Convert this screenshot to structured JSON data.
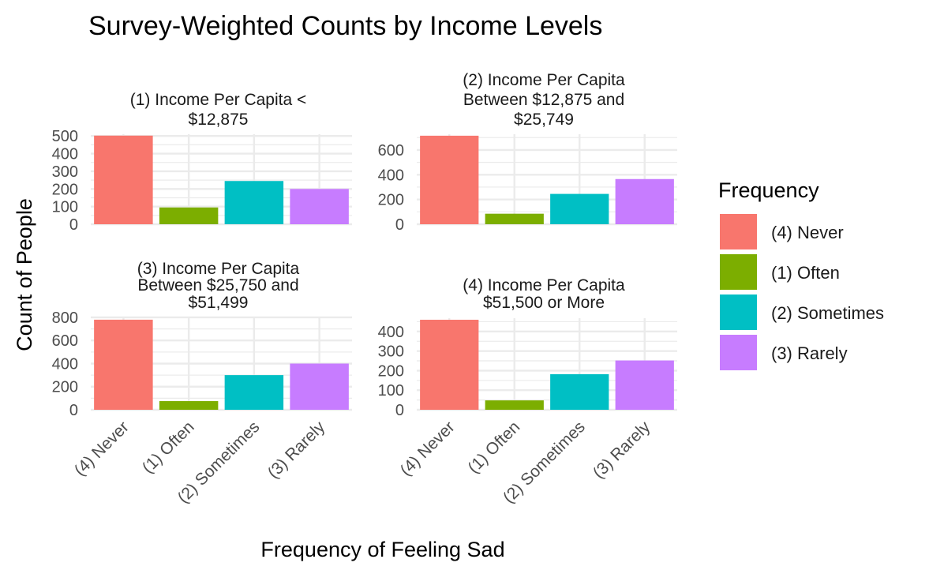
{
  "chart_data": {
    "type": "bar",
    "title": "Survey-Weighted Counts by Income Levels",
    "xlabel": "Frequency of Feeling Sad",
    "ylabel": "Count of People",
    "categories": [
      "(4) Never",
      "(1) Often",
      "(2) Sometimes",
      "(3) Rarely"
    ],
    "colors": [
      "#F8766D",
      "#7CAE00",
      "#00BFC4",
      "#C77CFF"
    ],
    "legend": {
      "title": "Frequency",
      "placement": "right",
      "items": [
        "(4) Never",
        "(1) Often",
        "(2) Sometimes",
        "(3) Rarely"
      ]
    },
    "grid": true,
    "panels": [
      {
        "title_lines": [
          "(1) Income Per Capita <",
          "$12,875"
        ],
        "values": [
          502,
          95,
          245,
          200
        ],
        "ylim": [
          0,
          510
        ],
        "ticks": [
          0,
          100,
          200,
          300,
          400,
          500
        ]
      },
      {
        "title_lines": [
          "(2) Income Per Capita",
          "Between $12,875 and",
          "$25,749"
        ],
        "values": [
          715,
          85,
          245,
          365
        ],
        "ylim": [
          0,
          727
        ],
        "ticks": [
          0,
          200,
          400,
          600
        ]
      },
      {
        "title_lines": [
          "(3) Income Per Capita",
          "Between $25,750 and",
          "$51,499"
        ],
        "values": [
          780,
          75,
          300,
          400
        ],
        "ylim": [
          0,
          793
        ],
        "ticks": [
          0,
          200,
          400,
          600,
          800
        ]
      },
      {
        "title_lines": [
          "(4) Income Per Capita",
          "$51,500 or More"
        ],
        "values": [
          460,
          48,
          182,
          252
        ],
        "ylim": [
          0,
          468
        ],
        "ticks": [
          0,
          100,
          200,
          300,
          400
        ]
      }
    ]
  }
}
